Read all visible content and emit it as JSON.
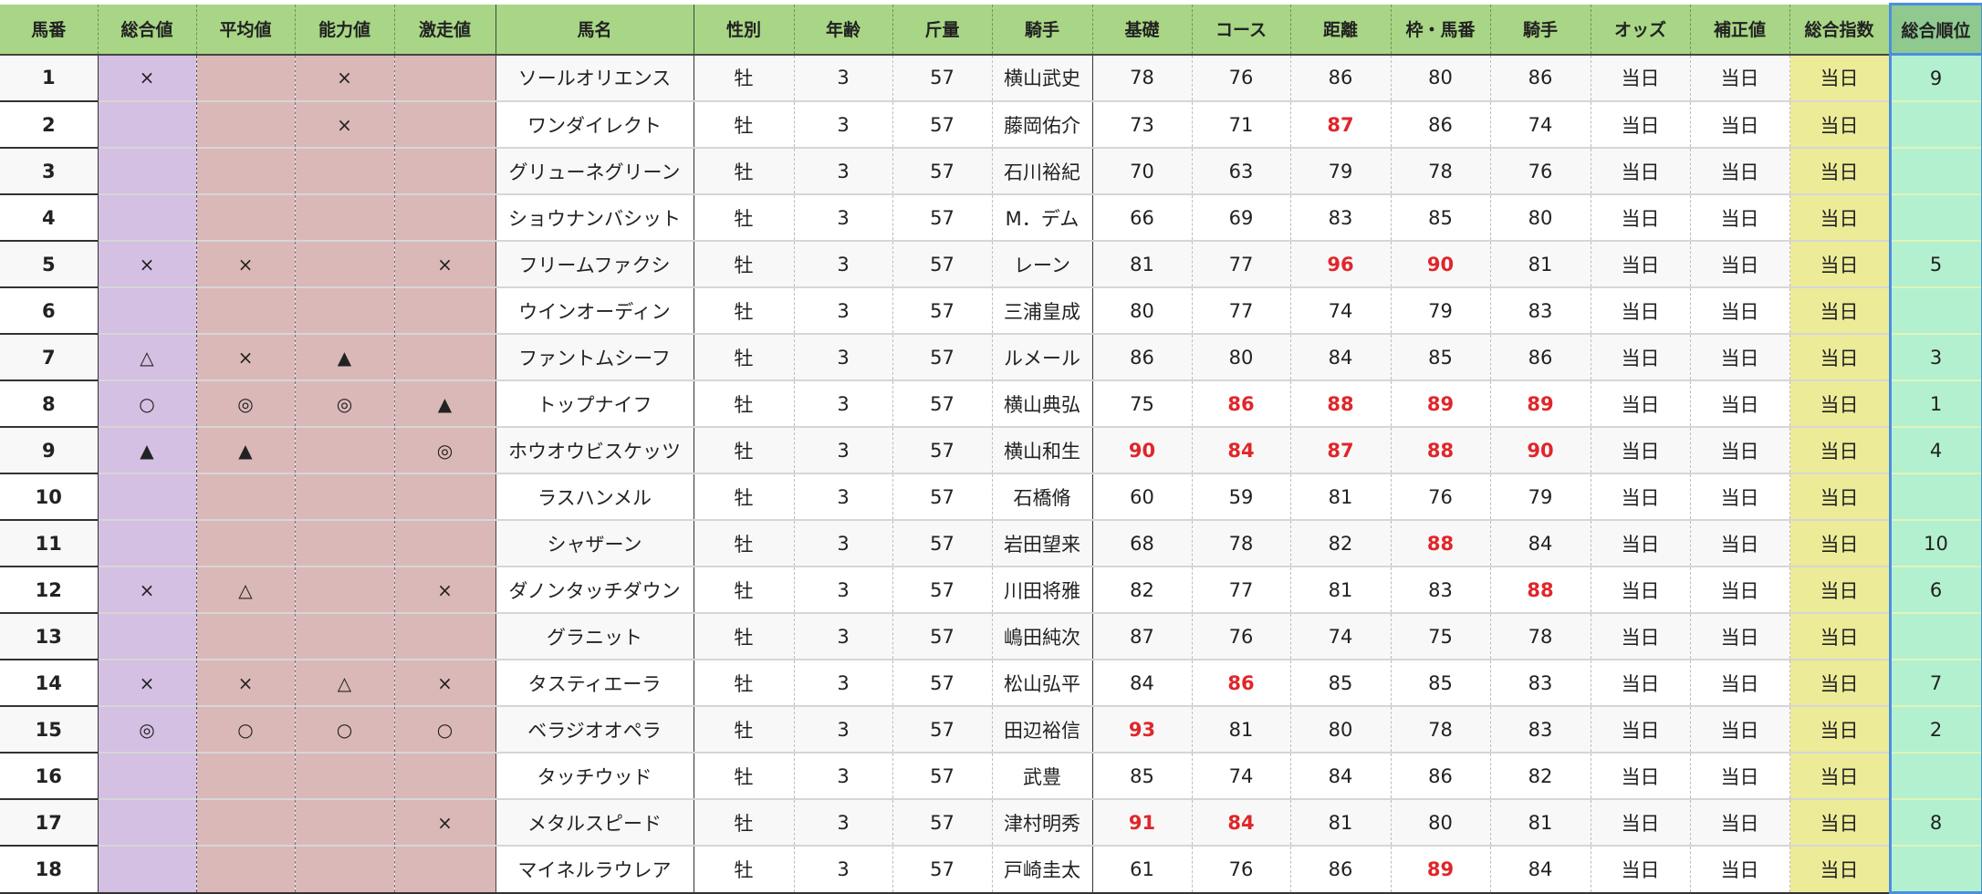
{
  "headers": [
    "馬番",
    "総合値",
    "平均値",
    "能力値",
    "激走値",
    "馬名",
    "性別",
    "年齢",
    "斤量",
    "騎手",
    "基礎",
    "コース",
    "距離",
    "枠・馬番",
    "騎手",
    "オッズ",
    "補正値",
    "総合指数",
    "総合順位"
  ],
  "colors": {
    "header": "#a8d686",
    "mark_total": "#d4c0e2",
    "mark_other": "#dbb8b8",
    "index": "#eceb98",
    "rank": "#b3f0d0",
    "highlight": "#e0262a",
    "selection": "#4a8fe0"
  },
  "rows": [
    {
      "num": "1",
      "marks": [
        "×",
        "",
        "×",
        ""
      ],
      "name": "ソールオリエンス",
      "sex": "牡",
      "age": "3",
      "weight": "57",
      "jockey": "横山武史",
      "scores": [
        "78",
        "76",
        "86",
        "80",
        "86"
      ],
      "red": [],
      "odds": "当日",
      "adj": "当日",
      "index": "当日",
      "rank": "9"
    },
    {
      "num": "2",
      "marks": [
        "",
        "",
        "×",
        ""
      ],
      "name": "ワンダイレクト",
      "sex": "牡",
      "age": "3",
      "weight": "57",
      "jockey": "藤岡佑介",
      "scores": [
        "73",
        "71",
        "87",
        "86",
        "74"
      ],
      "red": [
        2
      ],
      "odds": "当日",
      "adj": "当日",
      "index": "当日",
      "rank": ""
    },
    {
      "num": "3",
      "marks": [
        "",
        "",
        "",
        ""
      ],
      "name": "グリューネグリーン",
      "sex": "牡",
      "age": "3",
      "weight": "57",
      "jockey": "石川裕紀",
      "scores": [
        "70",
        "63",
        "79",
        "78",
        "76"
      ],
      "red": [],
      "odds": "当日",
      "adj": "当日",
      "index": "当日",
      "rank": ""
    },
    {
      "num": "4",
      "marks": [
        "",
        "",
        "",
        ""
      ],
      "name": "ショウナンバシット",
      "sex": "牡",
      "age": "3",
      "weight": "57",
      "jockey": "M．デム",
      "scores": [
        "66",
        "69",
        "83",
        "85",
        "80"
      ],
      "red": [],
      "odds": "当日",
      "adj": "当日",
      "index": "当日",
      "rank": ""
    },
    {
      "num": "5",
      "marks": [
        "×",
        "×",
        "",
        "×"
      ],
      "name": "フリームファクシ",
      "sex": "牡",
      "age": "3",
      "weight": "57",
      "jockey": "レーン",
      "scores": [
        "81",
        "77",
        "96",
        "90",
        "81"
      ],
      "red": [
        2,
        3
      ],
      "odds": "当日",
      "adj": "当日",
      "index": "当日",
      "rank": "5"
    },
    {
      "num": "6",
      "marks": [
        "",
        "",
        "",
        ""
      ],
      "name": "ウインオーディン",
      "sex": "牡",
      "age": "3",
      "weight": "57",
      "jockey": "三浦皇成",
      "scores": [
        "80",
        "77",
        "74",
        "79",
        "83"
      ],
      "red": [],
      "odds": "当日",
      "adj": "当日",
      "index": "当日",
      "rank": ""
    },
    {
      "num": "7",
      "marks": [
        "△",
        "×",
        "▲",
        ""
      ],
      "name": "ファントムシーフ",
      "sex": "牡",
      "age": "3",
      "weight": "57",
      "jockey": "ルメール",
      "scores": [
        "86",
        "80",
        "84",
        "85",
        "86"
      ],
      "red": [],
      "odds": "当日",
      "adj": "当日",
      "index": "当日",
      "rank": "3"
    },
    {
      "num": "8",
      "marks": [
        "○",
        "◎",
        "◎",
        "▲"
      ],
      "name": "トップナイフ",
      "sex": "牡",
      "age": "3",
      "weight": "57",
      "jockey": "横山典弘",
      "scores": [
        "75",
        "86",
        "88",
        "89",
        "89"
      ],
      "red": [
        1,
        2,
        3,
        4
      ],
      "odds": "当日",
      "adj": "当日",
      "index": "当日",
      "rank": "1"
    },
    {
      "num": "9",
      "marks": [
        "▲",
        "▲",
        "",
        "◎"
      ],
      "name": "ホウオウビスケッツ",
      "sex": "牡",
      "age": "3",
      "weight": "57",
      "jockey": "横山和生",
      "scores": [
        "90",
        "84",
        "87",
        "88",
        "90"
      ],
      "red": [
        0,
        1,
        2,
        3,
        4
      ],
      "odds": "当日",
      "adj": "当日",
      "index": "当日",
      "rank": "4"
    },
    {
      "num": "10",
      "marks": [
        "",
        "",
        "",
        ""
      ],
      "name": "ラスハンメル",
      "sex": "牡",
      "age": "3",
      "weight": "57",
      "jockey": "石橋脩",
      "scores": [
        "60",
        "59",
        "81",
        "76",
        "79"
      ],
      "red": [],
      "odds": "当日",
      "adj": "当日",
      "index": "当日",
      "rank": ""
    },
    {
      "num": "11",
      "marks": [
        "",
        "",
        "",
        ""
      ],
      "name": "シャザーン",
      "sex": "牡",
      "age": "3",
      "weight": "57",
      "jockey": "岩田望来",
      "scores": [
        "68",
        "78",
        "82",
        "88",
        "84"
      ],
      "red": [
        3
      ],
      "odds": "当日",
      "adj": "当日",
      "index": "当日",
      "rank": "10"
    },
    {
      "num": "12",
      "marks": [
        "×",
        "△",
        "",
        "×"
      ],
      "name": "ダノンタッチダウン",
      "sex": "牡",
      "age": "3",
      "weight": "57",
      "jockey": "川田将雅",
      "scores": [
        "82",
        "77",
        "81",
        "83",
        "88"
      ],
      "red": [
        4
      ],
      "odds": "当日",
      "adj": "当日",
      "index": "当日",
      "rank": "6"
    },
    {
      "num": "13",
      "marks": [
        "",
        "",
        "",
        ""
      ],
      "name": "グラニット",
      "sex": "牡",
      "age": "3",
      "weight": "57",
      "jockey": "嶋田純次",
      "scores": [
        "87",
        "76",
        "74",
        "75",
        "78"
      ],
      "red": [],
      "odds": "当日",
      "adj": "当日",
      "index": "当日",
      "rank": ""
    },
    {
      "num": "14",
      "marks": [
        "×",
        "×",
        "△",
        "×"
      ],
      "name": "タスティエーラ",
      "sex": "牡",
      "age": "3",
      "weight": "57",
      "jockey": "松山弘平",
      "scores": [
        "84",
        "86",
        "85",
        "85",
        "83"
      ],
      "red": [
        1
      ],
      "odds": "当日",
      "adj": "当日",
      "index": "当日",
      "rank": "7"
    },
    {
      "num": "15",
      "marks": [
        "◎",
        "○",
        "○",
        "○"
      ],
      "name": "ベラジオオペラ",
      "sex": "牡",
      "age": "3",
      "weight": "57",
      "jockey": "田辺裕信",
      "scores": [
        "93",
        "81",
        "80",
        "78",
        "83"
      ],
      "red": [
        0
      ],
      "odds": "当日",
      "adj": "当日",
      "index": "当日",
      "rank": "2"
    },
    {
      "num": "16",
      "marks": [
        "",
        "",
        "",
        ""
      ],
      "name": "タッチウッド",
      "sex": "牡",
      "age": "3",
      "weight": "57",
      "jockey": "武豊",
      "scores": [
        "85",
        "74",
        "84",
        "86",
        "82"
      ],
      "red": [],
      "odds": "当日",
      "adj": "当日",
      "index": "当日",
      "rank": ""
    },
    {
      "num": "17",
      "marks": [
        "",
        "",
        "",
        "×"
      ],
      "name": "メタルスピード",
      "sex": "牡",
      "age": "3",
      "weight": "57",
      "jockey": "津村明秀",
      "scores": [
        "91",
        "84",
        "81",
        "80",
        "81"
      ],
      "red": [
        0,
        1
      ],
      "odds": "当日",
      "adj": "当日",
      "index": "当日",
      "rank": "8"
    },
    {
      "num": "18",
      "marks": [
        "",
        "",
        "",
        ""
      ],
      "name": "マイネルラウレア",
      "sex": "牡",
      "age": "3",
      "weight": "57",
      "jockey": "戸崎圭太",
      "scores": [
        "61",
        "76",
        "86",
        "89",
        "84"
      ],
      "red": [
        3
      ],
      "odds": "当日",
      "adj": "当日",
      "index": "当日",
      "rank": ""
    }
  ]
}
